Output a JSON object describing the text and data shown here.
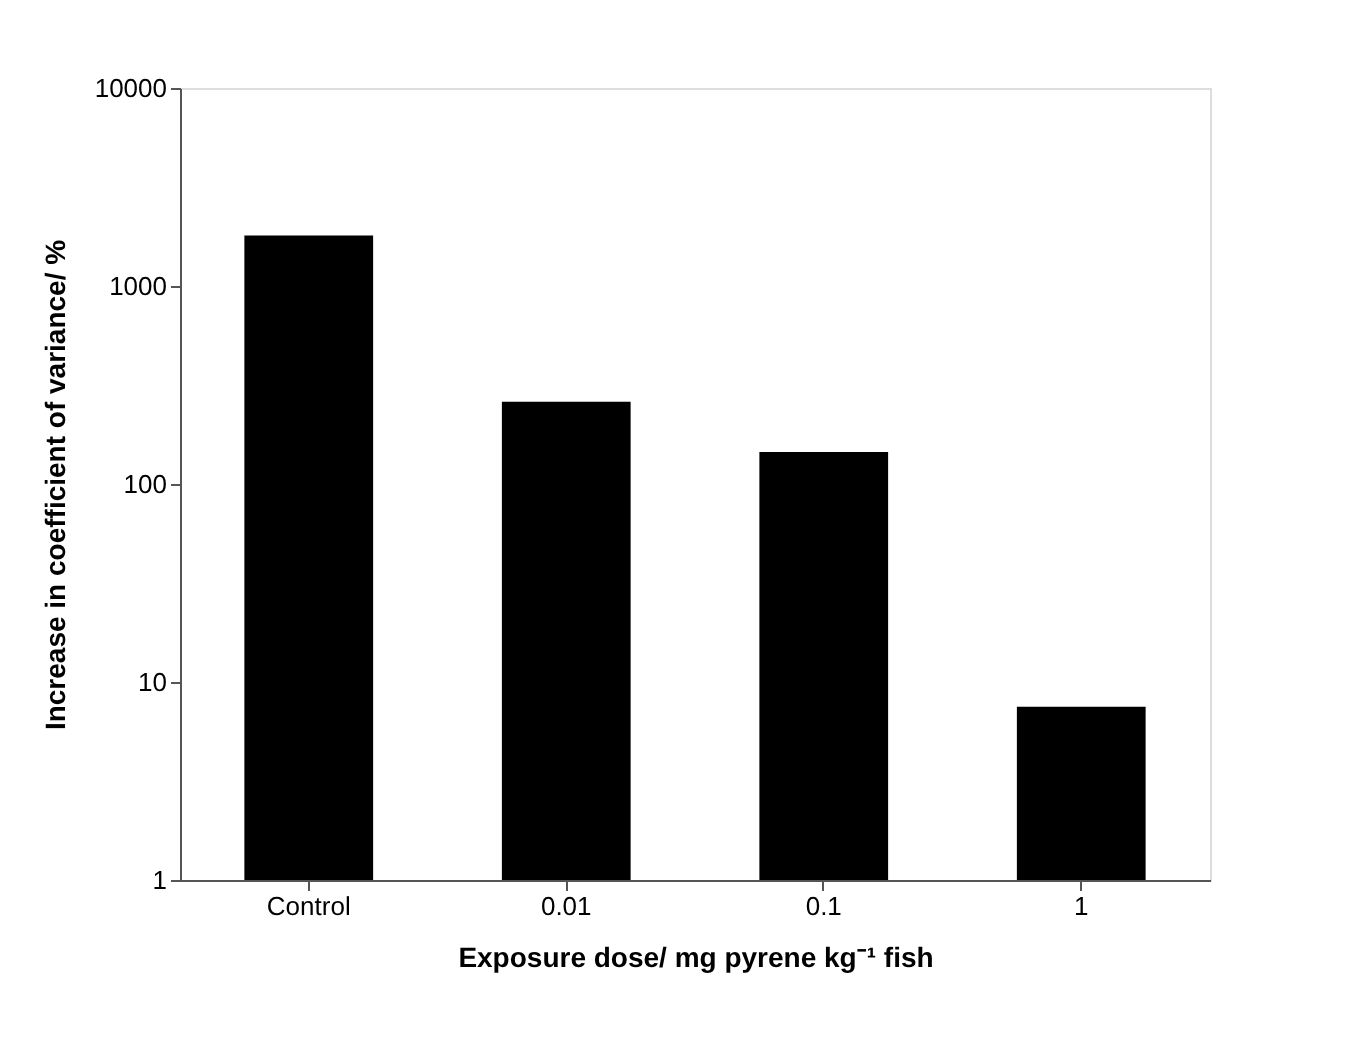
{
  "chart_data": {
    "type": "bar",
    "xlabel": "Exposure dose/ mg pyrene kg⁻¹ fish",
    "ylabel": "Increase in coefficient of variance/ %",
    "categories": [
      "Control",
      "0.01",
      "0.1",
      "1"
    ],
    "values": [
      1800,
      260,
      145,
      7.5
    ],
    "color": "#000000",
    "log": true,
    "ylim": [
      1,
      10000
    ],
    "yticks": [
      1,
      10,
      100,
      1000,
      10000
    ],
    "grid": false
  }
}
